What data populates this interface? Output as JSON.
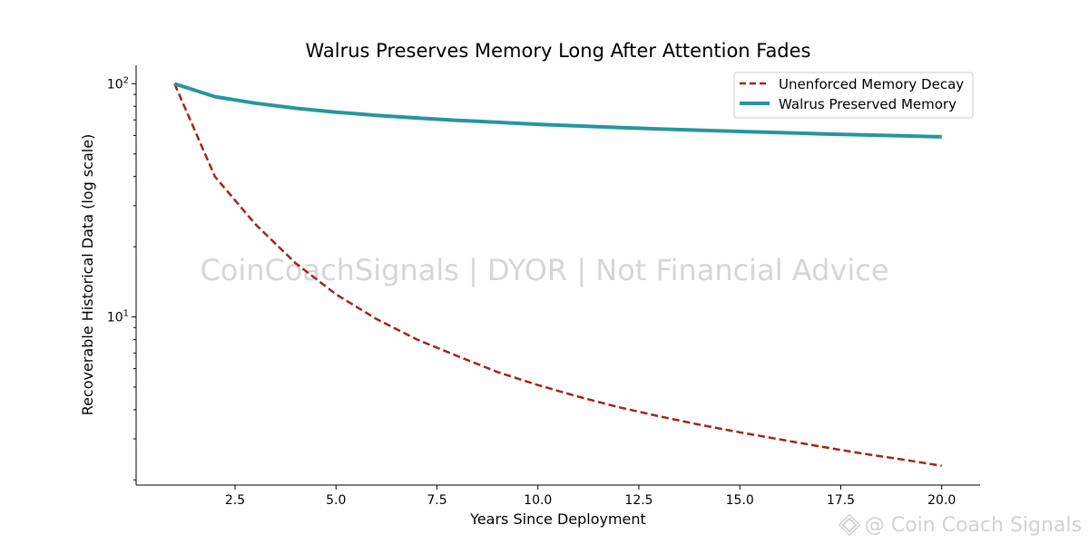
{
  "chart_data": {
    "type": "line",
    "title": "Walrus Preserves Memory Long After Attention Fades",
    "xlabel": "Years Since Deployment",
    "ylabel": "Recoverable Historical Data (log scale)",
    "yscale": "log",
    "xlim": [
      0.05,
      20.95
    ],
    "ylim": [
      1.9,
      120
    ],
    "x_ticks": [
      2.5,
      5.0,
      7.5,
      10.0,
      12.5,
      15.0,
      17.5,
      20.0
    ],
    "x_tick_labels": [
      "2.5",
      "5.0",
      "7.5",
      "10.0",
      "12.5",
      "15.0",
      "17.5",
      "20.0"
    ],
    "y_major_ticks": [
      {
        "value": 10,
        "base": "10",
        "exp": "1"
      },
      {
        "value": 100,
        "base": "10",
        "exp": "2"
      }
    ],
    "x": [
      1,
      2,
      3,
      4,
      5,
      6,
      7,
      8,
      9,
      10,
      11,
      12,
      13,
      14,
      15,
      16,
      17,
      18,
      19,
      20
    ],
    "series": [
      {
        "name": "Unenforced Memory Decay",
        "color": "#a0261d",
        "style": "dashed",
        "values": [
          100,
          40.0,
          25.0,
          17.0,
          12.5,
          9.8,
          8.0,
          6.8,
          5.8,
          5.1,
          4.55,
          4.1,
          3.75,
          3.45,
          3.2,
          2.98,
          2.78,
          2.6,
          2.45,
          2.3
        ]
      },
      {
        "name": "Walrus Preserved Memory",
        "color": "#2596a0",
        "style": "solid",
        "values": [
          100,
          88,
          82.5,
          78.5,
          75.5,
          73.2,
          71.3,
          69.7,
          68.3,
          67.0,
          65.9,
          64.9,
          64.0,
          63.2,
          62.4,
          61.7,
          61.0,
          60.4,
          59.8,
          59.2
        ]
      }
    ],
    "legend_position": "top-right",
    "watermark": "CoinCoachSignals | DYOR | Not Financial Advice"
  },
  "footer": {
    "brand": "@ Coin Coach Signals",
    "brand_icon": "binance-diamond-icon",
    "watermark_color": "#d2d2d2"
  }
}
